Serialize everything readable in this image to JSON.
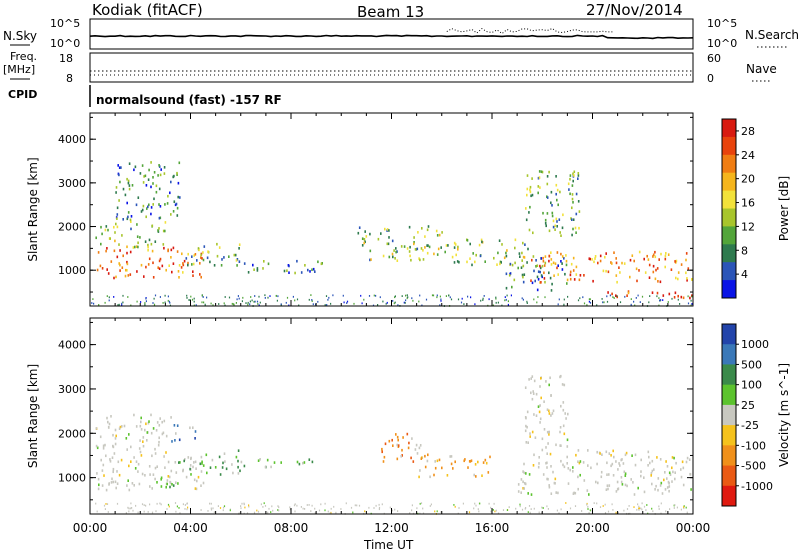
{
  "header": {
    "station": "Kodiak (fitACF)",
    "beam": "Beam 13",
    "date": "27/Nov/2014"
  },
  "panels": {
    "nsky_label": "N.Sky",
    "nsearch_label": "N.Search",
    "freq_label_1": "Freq.",
    "freq_label_2": "[MHz]",
    "nave_label": "Nave",
    "cpid_label": "CPID",
    "cpid_text": "normalsound (fast) -157 RF",
    "noise_left_ticks": [
      "10^5",
      "10^0"
    ],
    "noise_right_ticks": [
      "10^5",
      "10^0"
    ],
    "freq_left_ticks": [
      "18",
      "8"
    ],
    "nave_right_ticks": [
      "60",
      "0"
    ]
  },
  "chart_data": [
    {
      "type": "heatmap",
      "panel": "power",
      "ylabel": "Slant Range [km]",
      "xlabel": "Time UT",
      "ylim": [
        180,
        4600
      ],
      "yticks": [
        "1000",
        "2000",
        "3000",
        "4000"
      ],
      "xticks": [
        "00:00",
        "04:00",
        "08:00",
        "12:00",
        "16:00",
        "20:00",
        "00:00"
      ],
      "colorbar": {
        "label": "Power [dB]",
        "ticks": [
          "4",
          "8",
          "12",
          "16",
          "20",
          "24",
          "28"
        ],
        "colors": [
          "#0a14e6",
          "#2b55b8",
          "#2e7a4e",
          "#53a53a",
          "#a8c52c",
          "#f2e23b",
          "#f5b51c",
          "#f07d12",
          "#e8430c",
          "#d81a10"
        ]
      },
      "scatter_regions": [
        {
          "t0": 0.2,
          "t1": 4.5,
          "r0": 800,
          "r1": 1500,
          "value": 24
        },
        {
          "t0": 0.2,
          "t1": 3.0,
          "r0": 1500,
          "r1": 2100,
          "value": 12
        },
        {
          "t0": 1.0,
          "t1": 3.6,
          "r0": 2100,
          "r1": 3500,
          "value": 8
        },
        {
          "t0": 3.6,
          "t1": 6.0,
          "r0": 1050,
          "r1": 1600,
          "value": 10
        },
        {
          "t0": 6.0,
          "t1": 9.5,
          "r0": 900,
          "r1": 1200,
          "value": 8
        },
        {
          "t0": 10.5,
          "t1": 14.0,
          "r0": 1200,
          "r1": 2000,
          "value": 12
        },
        {
          "t0": 14.0,
          "t1": 17.5,
          "r0": 1100,
          "r1": 1700,
          "value": 12
        },
        {
          "t0": 16.5,
          "t1": 19.0,
          "r0": 500,
          "r1": 1300,
          "value": 8
        },
        {
          "t0": 17.5,
          "t1": 24.0,
          "r0": 700,
          "r1": 1400,
          "value": 22
        },
        {
          "t0": 20.5,
          "t1": 24.0,
          "r0": 300,
          "r1": 500,
          "value": 26
        },
        {
          "t0": 17.3,
          "t1": 19.5,
          "r0": 1700,
          "r1": 3300,
          "value": 10
        }
      ]
    },
    {
      "type": "heatmap",
      "panel": "velocity",
      "ylabel": "Slant Range [km]",
      "xlabel": "Time UT",
      "ylim": [
        180,
        4600
      ],
      "yticks": [
        "1000",
        "2000",
        "3000",
        "4000"
      ],
      "xticks": [
        "00:00",
        "04:00",
        "08:00",
        "12:00",
        "16:00",
        "20:00",
        "00:00"
      ],
      "colorbar": {
        "label": "Velocity [m s^-1]",
        "ticks": [
          "1000",
          "500",
          "100",
          "25",
          "-25",
          "-100",
          "-500",
          "-1000"
        ],
        "colors": [
          "#2244aa",
          "#3a78b8",
          "#3a8a4a",
          "#5cc32e",
          "#c8c8c0",
          "#f5c21c",
          "#f0901a",
          "#ea5a14",
          "#e01a10"
        ]
      },
      "scatter_regions": [
        {
          "t0": 0.2,
          "t1": 4.5,
          "r0": 700,
          "r1": 1500,
          "value": 0
        },
        {
          "t0": 0.2,
          "t1": 3.2,
          "r0": 1500,
          "r1": 2400,
          "value": 0
        },
        {
          "t0": 3.5,
          "t1": 6.0,
          "r0": 1050,
          "r1": 1600,
          "value": 80
        },
        {
          "t0": 3.2,
          "t1": 4.2,
          "r0": 1800,
          "r1": 2200,
          "value": 600
        },
        {
          "t0": 2.6,
          "t1": 3.6,
          "r0": 700,
          "r1": 1000,
          "value": 60
        },
        {
          "t0": 6.0,
          "t1": 9.0,
          "r0": 1200,
          "r1": 1400,
          "value": 80
        },
        {
          "t0": 11.5,
          "t1": 13.2,
          "r0": 1300,
          "r1": 2000,
          "value": -300
        },
        {
          "t0": 13.0,
          "t1": 16.0,
          "r0": 1000,
          "r1": 1500,
          "value": -80
        },
        {
          "t0": 17.0,
          "t1": 24.0,
          "r0": 600,
          "r1": 1600,
          "value": 0
        },
        {
          "t0": 17.3,
          "t1": 19.0,
          "r0": 1600,
          "r1": 3300,
          "value": 0
        }
      ]
    }
  ]
}
